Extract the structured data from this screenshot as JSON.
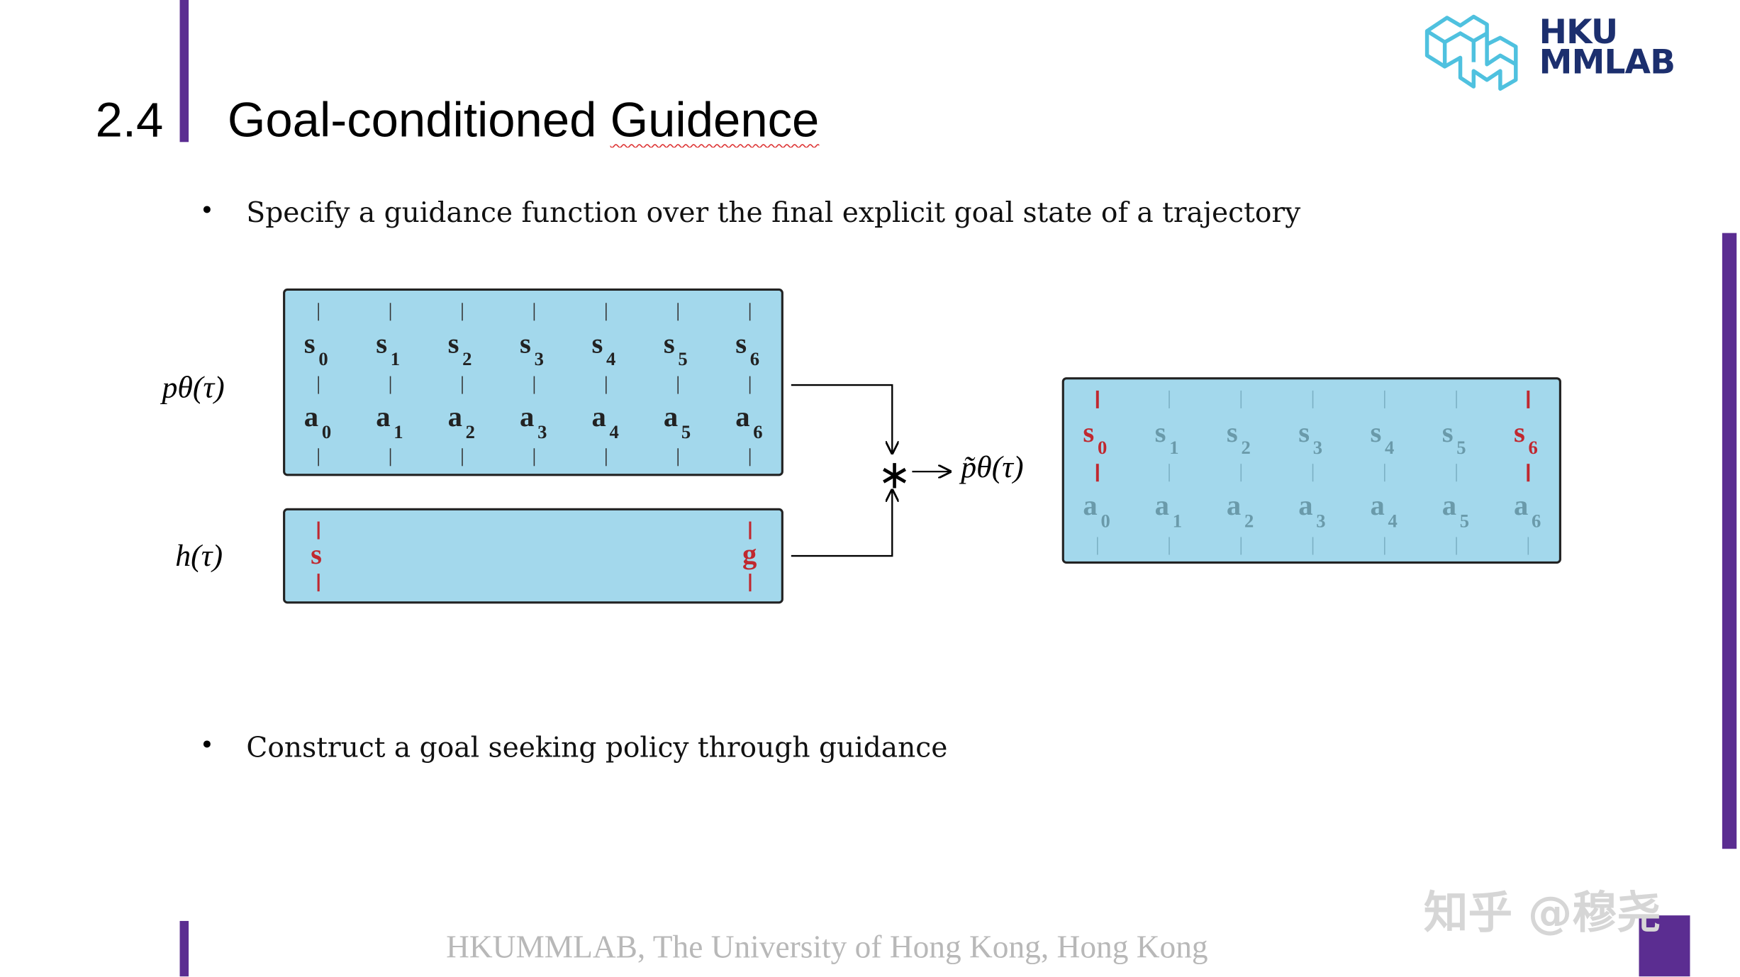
{
  "slide": {
    "section_number": "2.4",
    "title_prefix": "Goal-conditioned ",
    "title_misspelled": "Guidence",
    "bullets": [
      "Specify a guidance function over the final explicit goal state of a trajectory",
      "Construct a goal seeking policy through guidance"
    ],
    "footer": "HKUMMLAB, The University of Hong Kong, Hong Kong",
    "watermark": "知乎 @穆尧",
    "logo": {
      "line1": "HKU",
      "line2": "MMLAB"
    }
  },
  "diagram": {
    "label_p": "pθ(τ)",
    "label_h": "h(τ)",
    "label_ptilde": "p̃θ(τ)",
    "operator": "∗",
    "states": [
      "s",
      "s",
      "s",
      "s",
      "s",
      "s",
      "s"
    ],
    "actions": [
      "a",
      "a",
      "a",
      "a",
      "a",
      "a",
      "a"
    ],
    "indices": [
      "0",
      "1",
      "2",
      "3",
      "4",
      "5",
      "6"
    ],
    "h_start": "s",
    "h_goal": "g",
    "highlighted_indices": [
      0,
      6
    ]
  },
  "colors": {
    "accent_purple": "#5b2d91",
    "box_fill": "#a3d8ec",
    "highlight_red": "#c0282f",
    "logo_cyan": "#4fc1df",
    "logo_navy": "#1c2f6e"
  }
}
